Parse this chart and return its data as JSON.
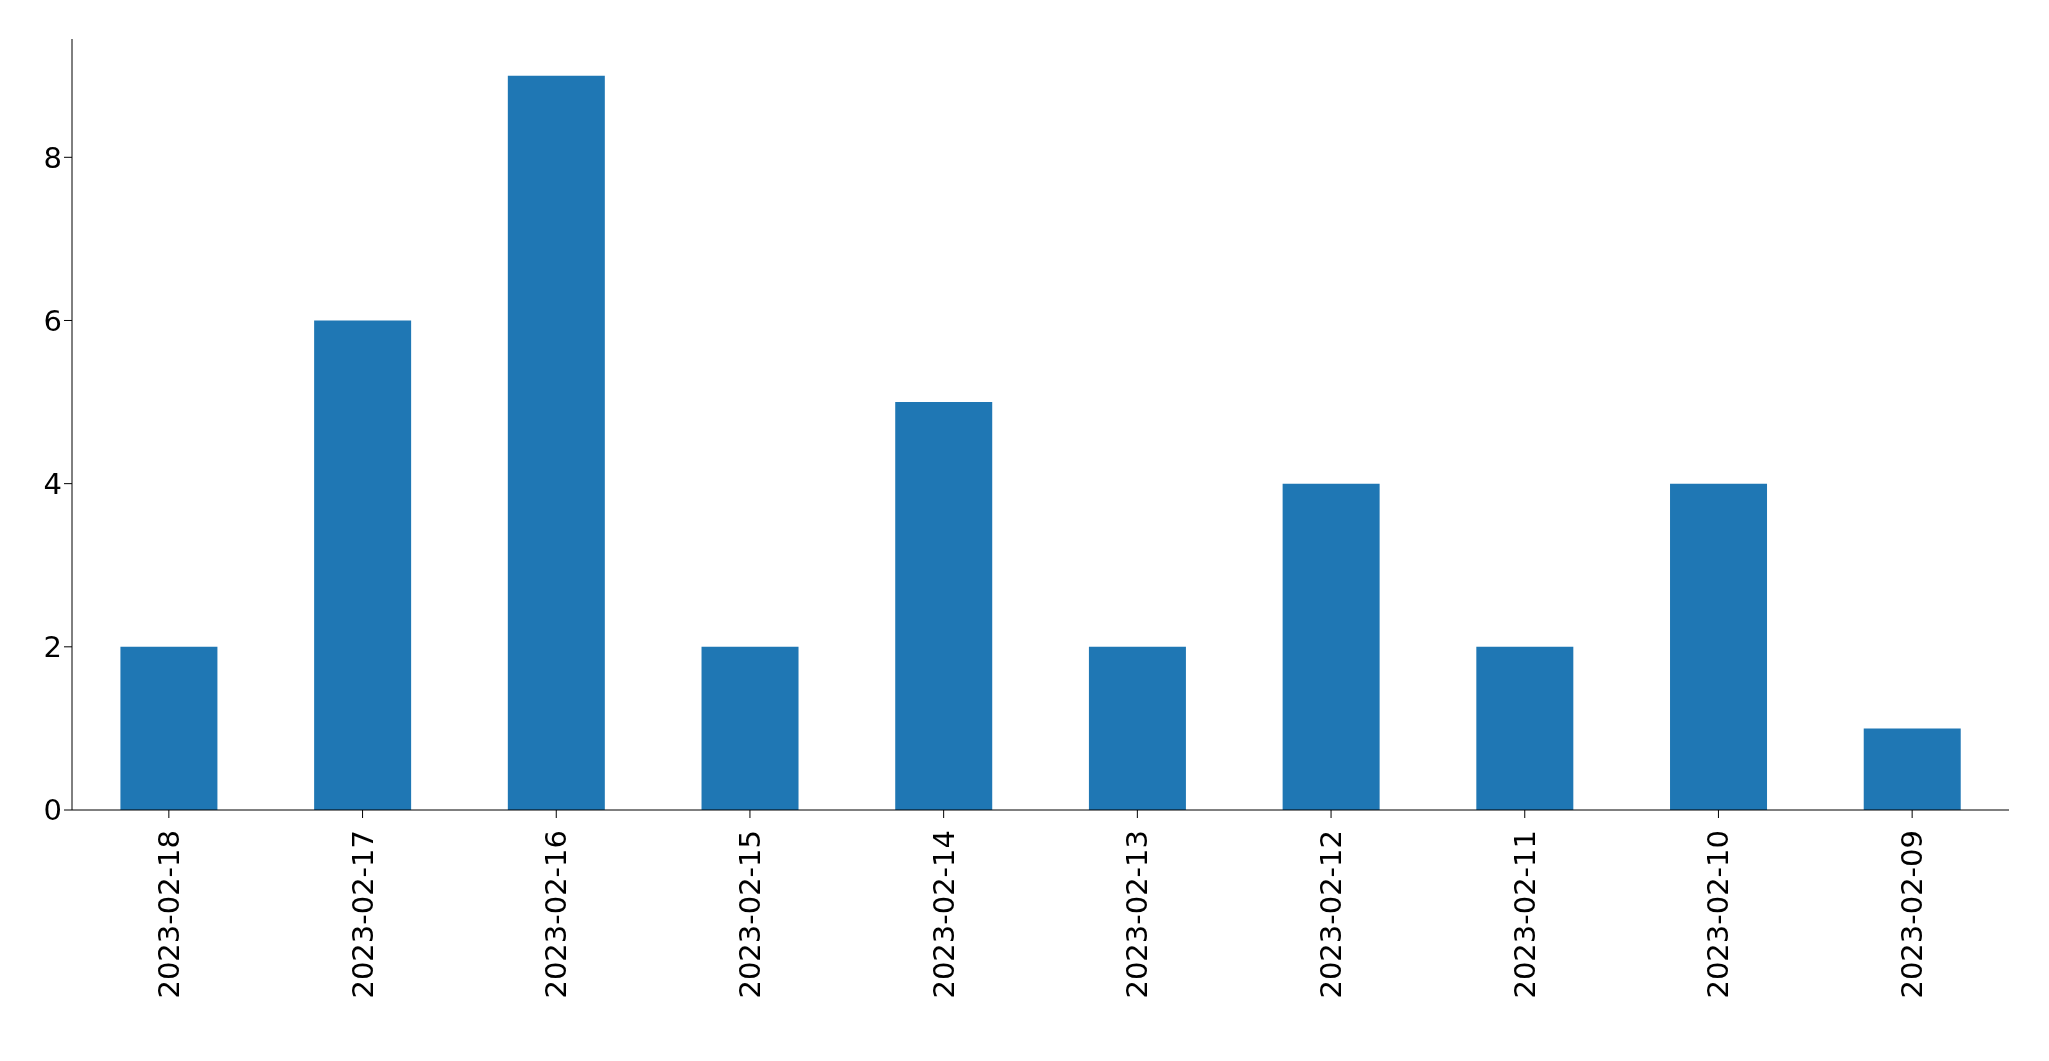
{
  "chart_data": {
    "type": "bar",
    "categories": [
      "2023-02-18",
      "2023-02-17",
      "2023-02-16",
      "2023-02-15",
      "2023-02-14",
      "2023-02-13",
      "2023-02-12",
      "2023-02-11",
      "2023-02-10",
      "2023-02-09"
    ],
    "values": [
      2,
      6,
      9,
      2,
      5,
      2,
      4,
      2,
      4,
      1
    ],
    "color": "#1f77b4",
    "ylim": [
      0,
      9.45
    ],
    "yticks": [
      0,
      2,
      4,
      6,
      8
    ],
    "grid": false,
    "legend": false
  }
}
